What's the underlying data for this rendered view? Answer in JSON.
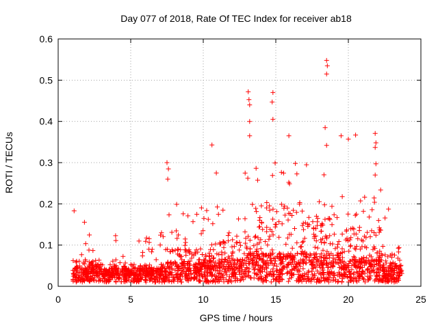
{
  "chart_data": {
    "type": "scatter",
    "title": "Day 077 of 2018, Rate Of TEC Index for receiver ab18",
    "xlabel": "GPS time / hours",
    "ylabel": "ROTI / TECUs",
    "xlim": [
      0,
      25
    ],
    "ylim": [
      0,
      0.6
    ],
    "x_ticks": [
      "0",
      "5",
      "10",
      "15",
      "20",
      "25"
    ],
    "y_ticks": [
      "0",
      "0.1",
      "0.2",
      "0.3",
      "0.4",
      "0.5",
      "0.6"
    ],
    "grid": true,
    "marker": "+",
    "series_color": "#ff0000",
    "series": [
      {
        "name": "ROTI",
        "density_profile": [
          {
            "x_range": [
              1.0,
              3.0
            ],
            "base": 0.03,
            "spread": 0.05,
            "max": 0.16
          },
          {
            "x_range": [
              3.0,
              7.5
            ],
            "base": 0.025,
            "spread": 0.04,
            "max": 0.13
          },
          {
            "x_range": [
              7.5,
              10.0
            ],
            "base": 0.035,
            "spread": 0.08,
            "max": 0.2
          },
          {
            "x_range": [
              10.0,
              12.8
            ],
            "base": 0.04,
            "spread": 0.1,
            "max": 0.2
          },
          {
            "x_range": [
              12.8,
              14.5
            ],
            "base": 0.05,
            "spread": 0.17,
            "max": 0.3
          },
          {
            "x_range": [
              14.5,
              17.0
            ],
            "base": 0.05,
            "spread": 0.22,
            "max": 0.32
          },
          {
            "x_range": [
              17.0,
              19.5
            ],
            "base": 0.05,
            "spread": 0.17,
            "max": 0.3
          },
          {
            "x_range": [
              19.5,
              22.3
            ],
            "base": 0.04,
            "spread": 0.15,
            "max": 0.25
          },
          {
            "x_range": [
              22.3,
              23.7
            ],
            "base": 0.03,
            "spread": 0.1,
            "max": 0.19
          }
        ],
        "outliers": [
          {
            "x": 1.1,
            "y": 0.183
          },
          {
            "x": 7.5,
            "y": 0.3
          },
          {
            "x": 7.6,
            "y": 0.285
          },
          {
            "x": 7.55,
            "y": 0.26
          },
          {
            "x": 10.6,
            "y": 0.343
          },
          {
            "x": 10.9,
            "y": 0.275
          },
          {
            "x": 13.1,
            "y": 0.472
          },
          {
            "x": 13.15,
            "y": 0.453
          },
          {
            "x": 13.2,
            "y": 0.44
          },
          {
            "x": 13.2,
            "y": 0.4
          },
          {
            "x": 13.2,
            "y": 0.365
          },
          {
            "x": 14.8,
            "y": 0.47
          },
          {
            "x": 14.75,
            "y": 0.447
          },
          {
            "x": 14.8,
            "y": 0.405
          },
          {
            "x": 15.9,
            "y": 0.365
          },
          {
            "x": 18.5,
            "y": 0.548
          },
          {
            "x": 18.55,
            "y": 0.535
          },
          {
            "x": 18.5,
            "y": 0.515
          },
          {
            "x": 18.4,
            "y": 0.385
          },
          {
            "x": 18.5,
            "y": 0.342
          },
          {
            "x": 19.5,
            "y": 0.365
          },
          {
            "x": 20.0,
            "y": 0.357
          },
          {
            "x": 20.5,
            "y": 0.367
          },
          {
            "x": 21.85,
            "y": 0.371
          },
          {
            "x": 21.9,
            "y": 0.348
          },
          {
            "x": 21.85,
            "y": 0.337
          },
          {
            "x": 21.9,
            "y": 0.297
          },
          {
            "x": 21.85,
            "y": 0.27
          }
        ]
      }
    ]
  }
}
